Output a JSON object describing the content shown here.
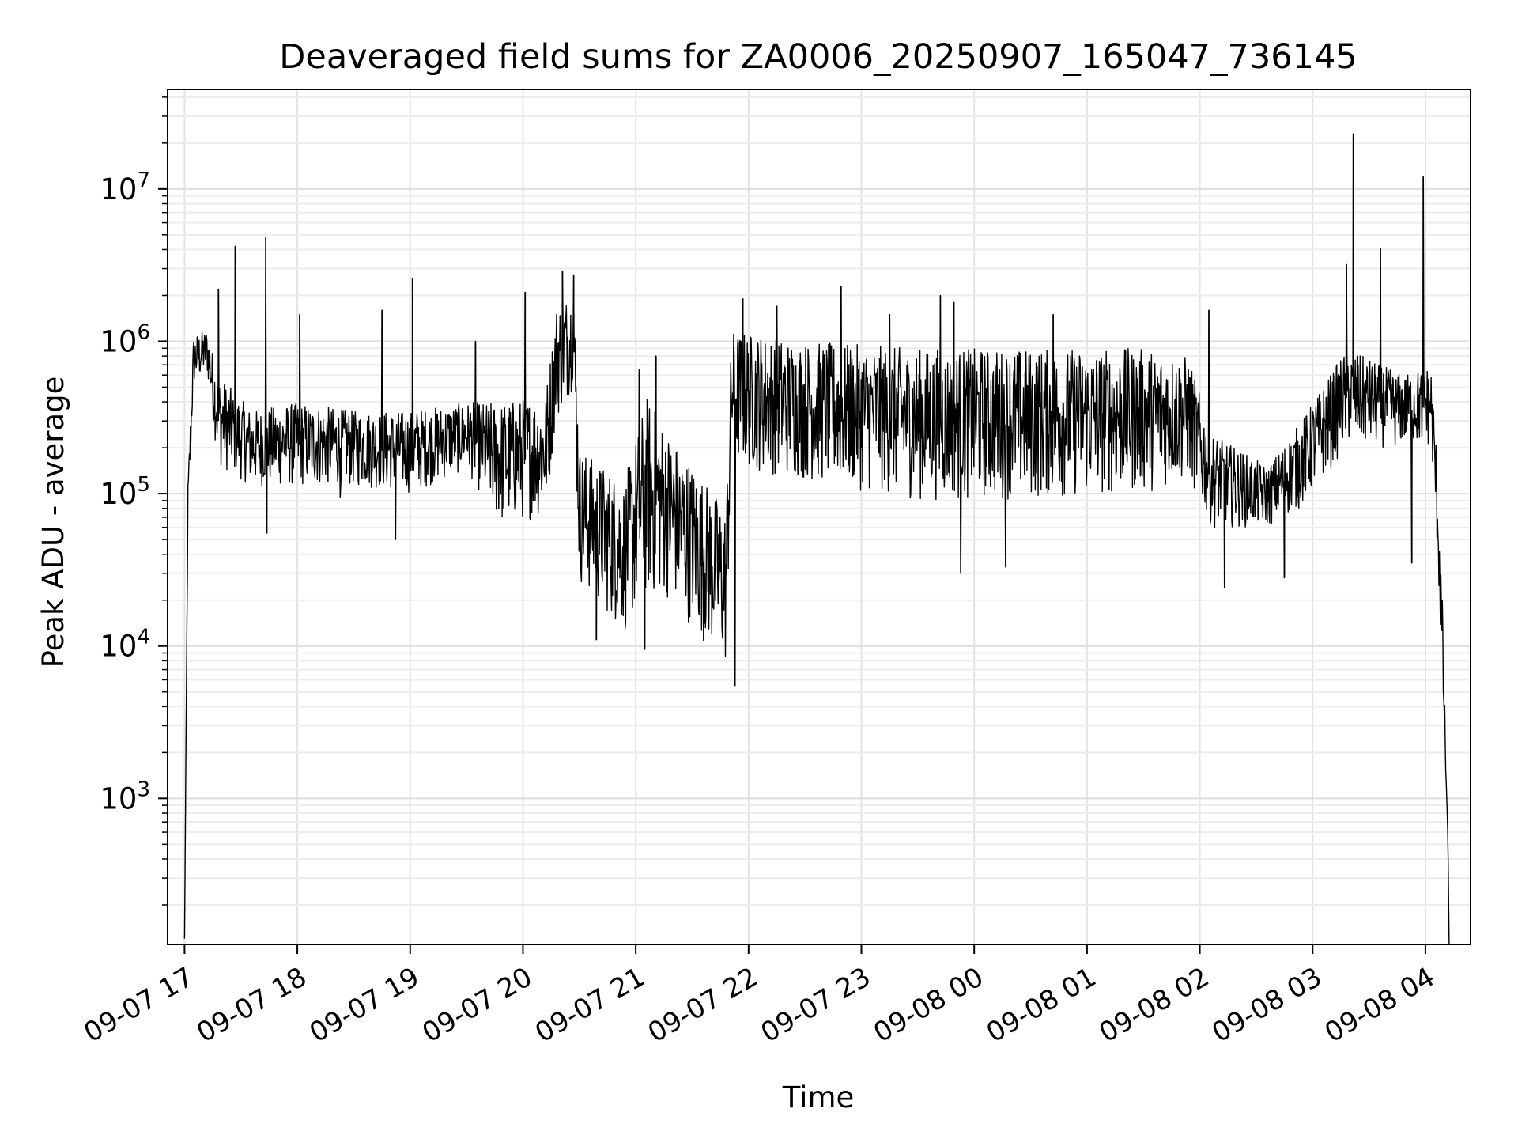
{
  "chart_data": {
    "type": "line",
    "title": "Deaveraged field sums for ZA0006_20250907_165047_736145",
    "xlabel": "Time",
    "ylabel": "Peak ADU - average",
    "yscale": "log",
    "ylim": [
      110,
      45000000
    ],
    "xlim_hours": [
      -0.15,
      11.4
    ],
    "grid": "major and minor, light gray",
    "x_ticks": [
      {
        "hour": 0,
        "label": "09-07 17"
      },
      {
        "hour": 1,
        "label": "09-07 18"
      },
      {
        "hour": 2,
        "label": "09-07 19"
      },
      {
        "hour": 3,
        "label": "09-07 20"
      },
      {
        "hour": 4,
        "label": "09-07 21"
      },
      {
        "hour": 5,
        "label": "09-07 22"
      },
      {
        "hour": 6,
        "label": "09-07 23"
      },
      {
        "hour": 7,
        "label": "09-08 00"
      },
      {
        "hour": 8,
        "label": "09-08 01"
      },
      {
        "hour": 9,
        "label": "09-08 02"
      },
      {
        "hour": 10,
        "label": "09-08 03"
      },
      {
        "hour": 11,
        "label": "09-08 04"
      }
    ],
    "y_ticks": [
      {
        "value": 1000,
        "base": "10",
        "exp": "3"
      },
      {
        "value": 10000,
        "base": "10",
        "exp": "4"
      },
      {
        "value": 100000,
        "base": "10",
        "exp": "5"
      },
      {
        "value": 1000000,
        "base": "10",
        "exp": "6"
      },
      {
        "value": 10000000,
        "base": "10",
        "exp": "7"
      }
    ],
    "series": [
      {
        "name": "Deaveraged field sums",
        "color": "#000000",
        "envelope": [
          {
            "h": 0.0,
            "low": 120,
            "high": 120
          },
          {
            "h": 0.03,
            "low": 60000,
            "high": 120000
          },
          {
            "h": 0.08,
            "low": 500000,
            "high": 1100000
          },
          {
            "h": 0.2,
            "low": 600000,
            "high": 1200000
          },
          {
            "h": 0.3,
            "low": 150000,
            "high": 600000
          },
          {
            "h": 0.6,
            "low": 110000,
            "high": 350000
          },
          {
            "h": 1.0,
            "low": 110000,
            "high": 400000
          },
          {
            "h": 1.5,
            "low": 110000,
            "high": 350000
          },
          {
            "h": 2.0,
            "low": 100000,
            "high": 350000
          },
          {
            "h": 2.5,
            "low": 140000,
            "high": 400000
          },
          {
            "h": 2.8,
            "low": 60000,
            "high": 400000
          },
          {
            "h": 3.2,
            "low": 70000,
            "high": 450000
          },
          {
            "h": 3.3,
            "low": 300000,
            "high": 1800000
          },
          {
            "h": 3.45,
            "low": 500000,
            "high": 2200000
          },
          {
            "h": 3.5,
            "low": 25000,
            "high": 200000
          },
          {
            "h": 3.9,
            "low": 12000,
            "high": 120000
          },
          {
            "h": 4.1,
            "low": 20000,
            "high": 450000
          },
          {
            "h": 4.3,
            "low": 20000,
            "high": 250000
          },
          {
            "h": 4.8,
            "low": 7000,
            "high": 80000
          },
          {
            "h": 4.85,
            "low": 150000,
            "high": 1200000
          },
          {
            "h": 5.5,
            "low": 120000,
            "high": 1000000
          },
          {
            "h": 6.5,
            "low": 90000,
            "high": 900000
          },
          {
            "h": 7.5,
            "low": 90000,
            "high": 900000
          },
          {
            "h": 8.5,
            "low": 100000,
            "high": 900000
          },
          {
            "h": 8.9,
            "low": 120000,
            "high": 800000
          },
          {
            "h": 9.1,
            "low": 60000,
            "high": 250000
          },
          {
            "h": 9.6,
            "low": 60000,
            "high": 150000
          },
          {
            "h": 9.9,
            "low": 80000,
            "high": 300000
          },
          {
            "h": 10.3,
            "low": 200000,
            "high": 900000
          },
          {
            "h": 10.8,
            "low": 200000,
            "high": 600000
          },
          {
            "h": 11.05,
            "low": 200000,
            "high": 700000
          },
          {
            "h": 11.1,
            "low": 50000,
            "high": 200000
          },
          {
            "h": 11.15,
            "low": 5000,
            "high": 20000
          },
          {
            "h": 11.2,
            "low": 500,
            "high": 500
          },
          {
            "h": 11.21,
            "low": 110,
            "high": 110
          }
        ],
        "spikes": [
          {
            "h": 0.3,
            "value": 2200000
          },
          {
            "h": 0.45,
            "value": 4200000
          },
          {
            "h": 0.72,
            "value": 4800000
          },
          {
            "h": 0.73,
            "value": 55000
          },
          {
            "h": 1.02,
            "value": 1500000
          },
          {
            "h": 1.38,
            "value": 95000
          },
          {
            "h": 1.75,
            "value": 1600000
          },
          {
            "h": 1.87,
            "value": 50000
          },
          {
            "h": 2.02,
            "value": 2600000
          },
          {
            "h": 2.58,
            "value": 1000000
          },
          {
            "h": 3.02,
            "value": 2100000
          },
          {
            "h": 3.35,
            "value": 2900000
          },
          {
            "h": 3.45,
            "value": 2700000
          },
          {
            "h": 3.65,
            "value": 11000
          },
          {
            "h": 4.03,
            "value": 650000
          },
          {
            "h": 4.08,
            "value": 9500
          },
          {
            "h": 4.18,
            "value": 800000
          },
          {
            "h": 4.88,
            "value": 5500
          },
          {
            "h": 4.95,
            "value": 1900000
          },
          {
            "h": 5.25,
            "value": 1700000
          },
          {
            "h": 5.82,
            "value": 2300000
          },
          {
            "h": 6.25,
            "value": 1500000
          },
          {
            "h": 6.7,
            "value": 2000000
          },
          {
            "h": 6.82,
            "value": 1800000
          },
          {
            "h": 6.88,
            "value": 30000
          },
          {
            "h": 7.28,
            "value": 33000
          },
          {
            "h": 7.7,
            "value": 1500000
          },
          {
            "h": 9.08,
            "value": 1600000
          },
          {
            "h": 9.22,
            "value": 24000
          },
          {
            "h": 9.75,
            "value": 28000
          },
          {
            "h": 10.3,
            "value": 3200000
          },
          {
            "h": 10.36,
            "value": 23000000
          },
          {
            "h": 10.6,
            "value": 4100000
          },
          {
            "h": 10.88,
            "value": 35000
          },
          {
            "h": 10.98,
            "value": 12000000
          }
        ]
      }
    ]
  }
}
